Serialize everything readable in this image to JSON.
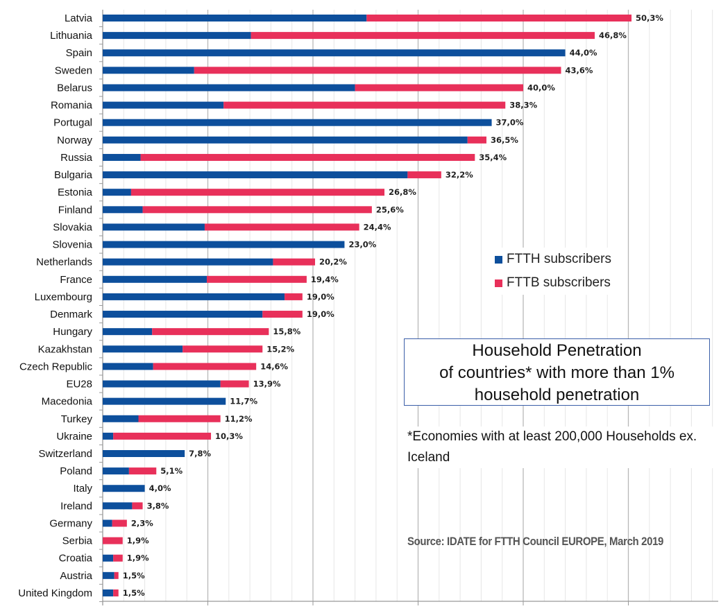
{
  "chart_data": {
    "type": "bar",
    "orientation": "horizontal",
    "stacked": true,
    "title": "Household Penetration of countries* with more than 1% household penetration",
    "note": "*Economies with at least 200,000 Households ex. Iceland",
    "source": "Source: IDATE for FTTH Council EUROPE, March 2019",
    "xlim": [
      0,
      58
    ],
    "grid": true,
    "legend_position": "right-middle",
    "colors": {
      "FTTH subscribers": "#0d4f9c",
      "FTTB subscribers": "#e8305a"
    },
    "categories": [
      "Latvia",
      "Lithuania",
      "Spain",
      "Sweden",
      "Belarus",
      "Romania",
      "Portugal",
      "Norway",
      "Russia",
      "Bulgaria",
      "Estonia",
      "Finland",
      "Slovakia",
      "Slovenia",
      "Netherlands",
      "France",
      "Luxembourg",
      "Denmark",
      "Hungary",
      "Kazakhstan",
      "Czech Republic",
      "EU28",
      "Macedonia",
      "Turkey",
      "Ukraine",
      "Switzerland",
      "Poland",
      "Italy",
      "Ireland",
      "Germany",
      "Serbia",
      "Croatia",
      "Austria",
      "United Kingdom"
    ],
    "series": [
      {
        "name": "FTTH subscribers",
        "values": [
          25.1,
          14.1,
          44.0,
          8.7,
          24.0,
          11.5,
          37.0,
          34.7,
          3.6,
          29.0,
          2.7,
          3.8,
          9.7,
          23.0,
          16.2,
          9.9,
          17.3,
          15.2,
          4.7,
          7.6,
          4.8,
          11.2,
          11.7,
          3.4,
          1.0,
          7.8,
          2.5,
          4.0,
          2.8,
          0.9,
          0.0,
          1.0,
          1.1,
          1.0
        ]
      },
      {
        "name": "FTTB subscribers",
        "values": [
          25.2,
          32.7,
          0.0,
          34.9,
          16.0,
          26.8,
          0.0,
          1.8,
          31.8,
          3.2,
          24.1,
          21.8,
          14.7,
          0.0,
          4.0,
          9.5,
          1.7,
          3.8,
          11.1,
          7.6,
          9.8,
          2.7,
          0.0,
          7.8,
          9.3,
          0.0,
          2.6,
          0.0,
          1.0,
          1.4,
          1.9,
          0.9,
          0.4,
          0.5
        ]
      }
    ],
    "data_labels": [
      "50,3%",
      "46,8%",
      "44,0%",
      "43,6%",
      "40,0%",
      "38,3%",
      "37,0%",
      "36,5%",
      "35,4%",
      "32,2%",
      "26,8%",
      "25,6%",
      "24,4%",
      "23,0%",
      "20,2%",
      "19,4%",
      "19,0%",
      "19,0%",
      "15,8%",
      "15,2%",
      "14,6%",
      "13,9%",
      "11,7%",
      "11,2%",
      "10,3%",
      "7,8%",
      "5,1%",
      "4,0%",
      "3,8%",
      "2,3%",
      "1,9%",
      "1,9%",
      "1,5%",
      "1,5%"
    ]
  }
}
